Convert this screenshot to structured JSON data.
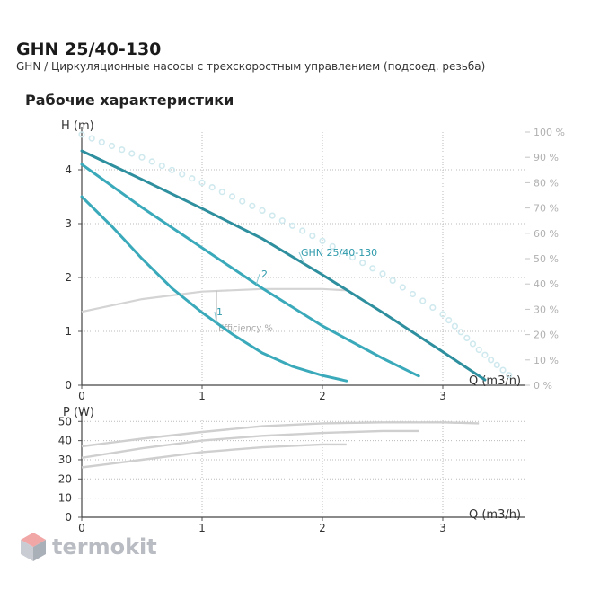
{
  "header": {
    "title": "GHN 25/40-130",
    "subtitle": "GHN / Циркуляционные насосы с трехскоростным управлением (подсоед. резьба)",
    "section_title": "Рабочие характеристики"
  },
  "logo": {
    "text": "termokit",
    "icon": "hexagon-cube-icon"
  },
  "colors": {
    "curve": "#3aaabb",
    "curve_dark": "#2e8f9e",
    "grid": "#bbbbbb",
    "efficiency": "#d4d4d4",
    "percent_text": "#b0b0b0",
    "power": "#cfcfcf"
  },
  "chart_data": [
    {
      "type": "line",
      "xlabel": "Q (m3/h)",
      "ylabel": "H (m)",
      "y2label": "",
      "xlim": [
        0,
        3.6
      ],
      "ylim": [
        0,
        4.7
      ],
      "y2lim": [
        0,
        100
      ],
      "x_ticks": [
        "0",
        "1",
        "2",
        "3"
      ],
      "y_ticks": [
        "0",
        "1",
        "2",
        "3",
        "4"
      ],
      "y2_ticks": [
        "0 %",
        "10 %",
        "20 %",
        "30 %",
        "40 %",
        "50 %",
        "60 %",
        "70 %",
        "80 %",
        "90 %",
        "100 %"
      ],
      "grid": true,
      "series": [
        {
          "name": "GHN 25/40-130",
          "x": [
            0,
            0.5,
            1,
            1.5,
            2,
            2.5,
            3,
            3.35
          ],
          "y": [
            4.35,
            3.82,
            3.28,
            2.72,
            2.05,
            1.35,
            0.62,
            0.1
          ]
        },
        {
          "name": "2",
          "x": [
            0,
            0.5,
            1,
            1.5,
            2,
            2.5,
            2.8
          ],
          "y": [
            4.1,
            3.3,
            2.55,
            1.8,
            1.1,
            0.5,
            0.17
          ]
        },
        {
          "name": "1",
          "x": [
            0,
            0.25,
            0.5,
            0.75,
            1,
            1.25,
            1.5,
            1.75,
            2,
            2.2
          ],
          "y": [
            3.5,
            2.95,
            2.35,
            1.8,
            1.35,
            0.95,
            0.6,
            0.35,
            0.18,
            0.08
          ]
        }
      ],
      "efficiency": {
        "name": "Efficiency %",
        "x": [
          0,
          0.5,
          1,
          1.5,
          2,
          2.2
        ],
        "y": [
          29,
          34,
          37,
          38,
          38,
          37.5
        ]
      },
      "efficiency_dotted": {
        "x": [
          0,
          0.5,
          1,
          1.5,
          2,
          2.5,
          3,
          3.3,
          3.6
        ],
        "y": [
          99,
          90,
          80,
          69,
          57,
          44,
          28,
          14,
          2
        ]
      }
    },
    {
      "type": "line",
      "xlabel": "Q (m3/h)",
      "ylabel": "P (W)",
      "xlim": [
        0,
        3.6
      ],
      "ylim": [
        0,
        52
      ],
      "x_ticks": [
        "0",
        "1",
        "2",
        "3"
      ],
      "y_ticks": [
        "0",
        "10",
        "20",
        "30",
        "40",
        "50"
      ],
      "grid": true,
      "series": [
        {
          "name": "",
          "x": [
            0,
            0.5,
            1,
            1.5,
            2,
            2.5,
            3,
            3.3
          ],
          "y": [
            37,
            41,
            44.5,
            47.5,
            49,
            49.5,
            49.5,
            49
          ]
        },
        {
          "name": "",
          "x": [
            0,
            0.5,
            1,
            1.5,
            2,
            2.5,
            2.8
          ],
          "y": [
            31,
            36,
            40,
            42.5,
            44,
            45,
            45
          ]
        },
        {
          "name": "",
          "x": [
            0,
            0.5,
            1,
            1.5,
            2,
            2.2
          ],
          "y": [
            26,
            30,
            34,
            36.5,
            38,
            38
          ]
        }
      ]
    }
  ]
}
